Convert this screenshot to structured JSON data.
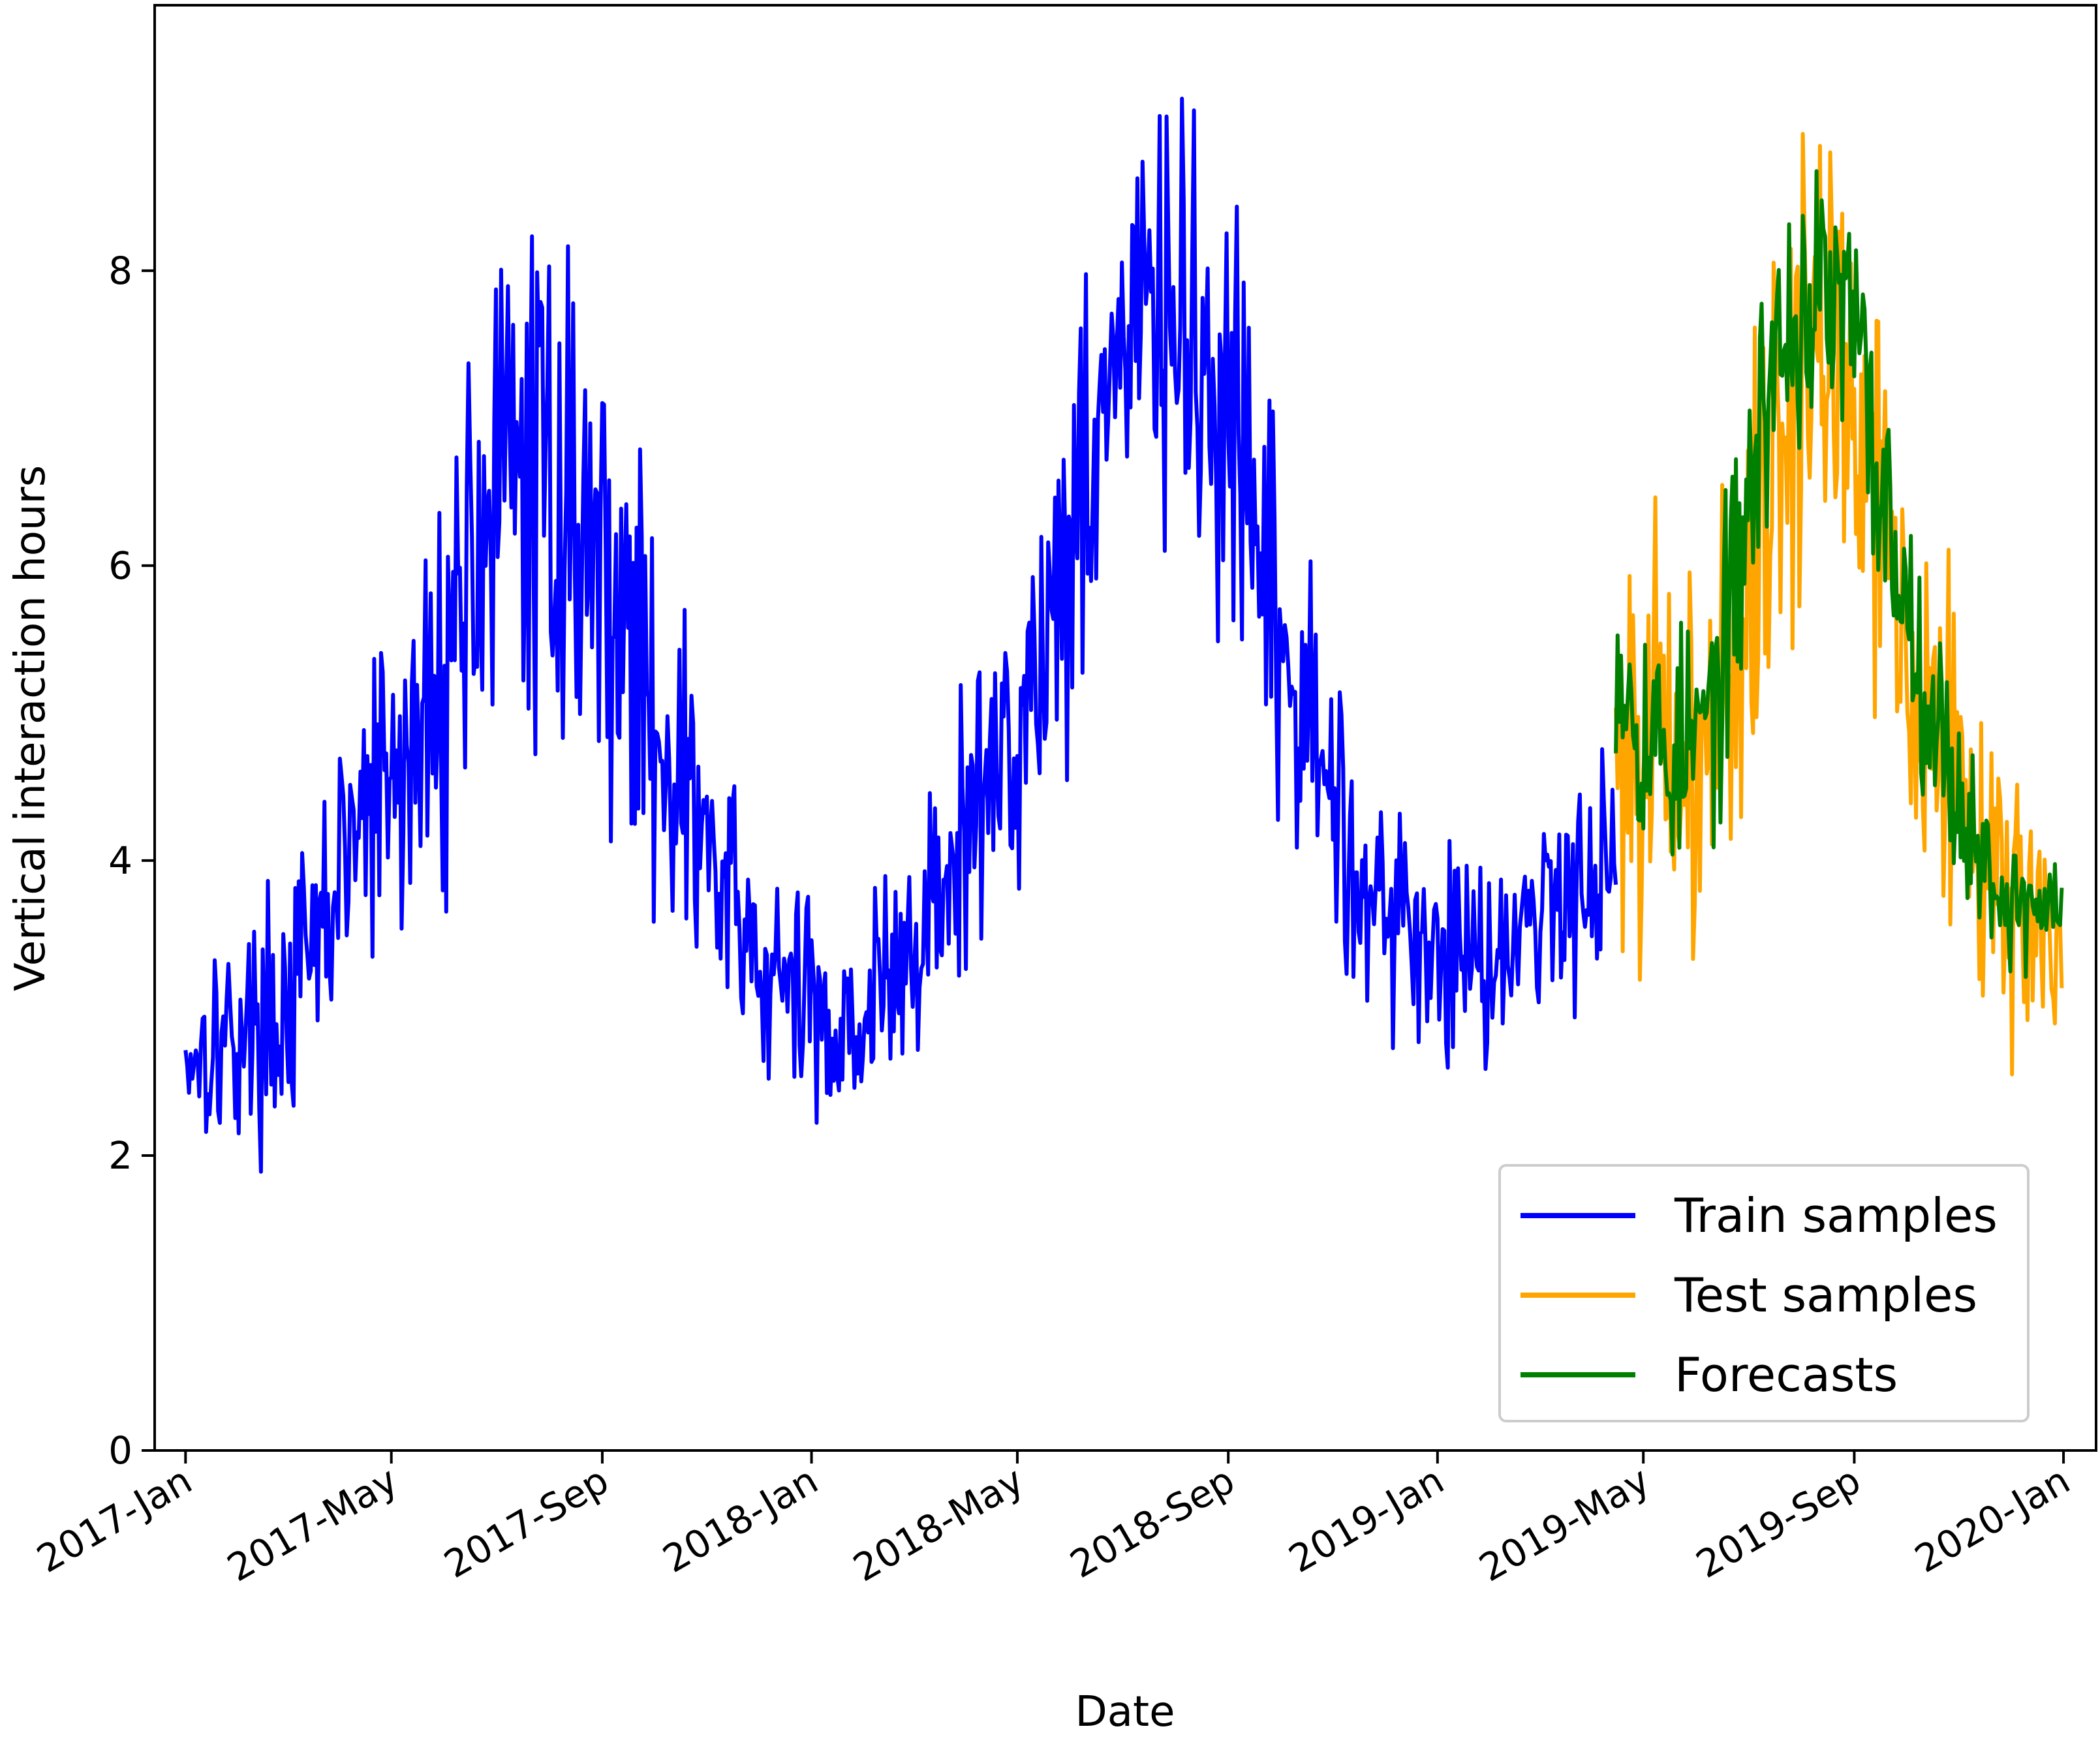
{
  "chart_data": {
    "type": "line",
    "title": "",
    "xlabel": "Date",
    "ylabel": "Vertical interaction hours",
    "ylim": [
      0,
      9.8
    ],
    "xlim": [
      "2016-12-14",
      "2020-01-20"
    ],
    "x_ticks": [
      {
        "date": "2017-01-01",
        "label": "2017-Jan"
      },
      {
        "date": "2017-05-01",
        "label": "2017-May"
      },
      {
        "date": "2017-09-01",
        "label": "2017-Sep"
      },
      {
        "date": "2018-01-01",
        "label": "2018-Jan"
      },
      {
        "date": "2018-05-01",
        "label": "2018-May"
      },
      {
        "date": "2018-09-01",
        "label": "2018-Sep"
      },
      {
        "date": "2019-01-01",
        "label": "2019-Jan"
      },
      {
        "date": "2019-05-01",
        "label": "2019-May"
      },
      {
        "date": "2019-09-01",
        "label": "2019-Sep"
      },
      {
        "date": "2020-01-01",
        "label": "2020-Jan"
      }
    ],
    "y_ticks": [
      0,
      2,
      4,
      6,
      8
    ],
    "grid": false,
    "legend_position": "bottom-right",
    "series": [
      {
        "name": "Train samples",
        "color": "#0000ff",
        "x": [
          "2017-01-01",
          "2017-01-15",
          "2017-02-01",
          "2017-02-15",
          "2017-03-01",
          "2017-03-15",
          "2017-04-01",
          "2017-04-15",
          "2017-05-01",
          "2017-05-15",
          "2017-06-01",
          "2017-06-15",
          "2017-07-01",
          "2017-07-15",
          "2017-08-01",
          "2017-08-15",
          "2017-09-01",
          "2017-09-15",
          "2017-10-01",
          "2017-10-15",
          "2017-11-01",
          "2017-11-15",
          "2017-12-01",
          "2017-12-15",
          "2018-01-01",
          "2018-01-15",
          "2018-02-01",
          "2018-02-15",
          "2018-03-01",
          "2018-03-15",
          "2018-04-01",
          "2018-04-15",
          "2018-05-01",
          "2018-05-15",
          "2018-06-01",
          "2018-06-15",
          "2018-07-01",
          "2018-07-15",
          "2018-08-01",
          "2018-08-15",
          "2018-09-01",
          "2018-09-15",
          "2018-10-01",
          "2018-10-15",
          "2018-11-01",
          "2018-11-15",
          "2018-12-01",
          "2018-12-15",
          "2019-01-01",
          "2019-01-15",
          "2019-02-01",
          "2019-02-15",
          "2019-03-01",
          "2019-03-15",
          "2019-04-01",
          "2019-04-15"
        ],
        "y": [
          2.7,
          2.8,
          2.8,
          2.9,
          3.0,
          3.3,
          3.9,
          4.3,
          4.5,
          4.7,
          5.3,
          6.1,
          6.5,
          6.6,
          6.6,
          6.4,
          6.0,
          5.6,
          5.0,
          4.6,
          4.1,
          3.6,
          3.3,
          3.1,
          3.0,
          2.9,
          3.0,
          3.1,
          3.4,
          3.7,
          4.1,
          4.6,
          5.0,
          5.4,
          6.2,
          7.0,
          7.5,
          7.7,
          7.6,
          7.3,
          6.8,
          6.2,
          5.4,
          4.9,
          4.5,
          4.0,
          3.7,
          3.5,
          3.4,
          3.4,
          3.4,
          3.5,
          3.6,
          3.8,
          4.0,
          4.2
        ],
        "amplitude": [
          0.55,
          0.6,
          0.6,
          0.65,
          0.7,
          0.75,
          0.85,
          0.95,
          1.0,
          1.05,
          1.2,
          1.3,
          1.4,
          1.45,
          1.45,
          1.4,
          1.35,
          1.25,
          1.1,
          1.0,
          0.9,
          0.8,
          0.75,
          0.7,
          0.7,
          0.7,
          0.7,
          0.7,
          0.75,
          0.8,
          0.9,
          0.95,
          1.0,
          1.05,
          1.15,
          1.25,
          1.35,
          1.35,
          1.3,
          1.3,
          1.25,
          1.2,
          1.05,
          0.95,
          0.85,
          0.75,
          0.7,
          0.65,
          0.6,
          0.6,
          0.6,
          0.6,
          0.6,
          0.65,
          0.7,
          0.75
        ]
      },
      {
        "name": "Test samples",
        "color": "#ffa500",
        "x": [
          "2019-04-15",
          "2019-05-01",
          "2019-05-15",
          "2019-06-01",
          "2019-06-15",
          "2019-07-01",
          "2019-07-15",
          "2019-08-01",
          "2019-08-15",
          "2019-09-01",
          "2019-09-15",
          "2019-10-01",
          "2019-10-15",
          "2019-11-01",
          "2019-11-15",
          "2019-12-01",
          "2019-12-15",
          "2019-12-31"
        ],
        "y": [
          4.8,
          5.0,
          4.5,
          4.6,
          5.0,
          5.9,
          6.7,
          7.3,
          7.5,
          7.3,
          6.5,
          5.6,
          5.0,
          4.4,
          4.0,
          3.7,
          3.6,
          3.6
        ],
        "amplitude": [
          1.1,
          1.25,
          1.25,
          1.2,
          1.25,
          1.35,
          1.45,
          1.5,
          1.5,
          1.45,
          1.35,
          1.25,
          1.15,
          1.05,
          0.9,
          0.8,
          0.75,
          0.75
        ]
      },
      {
        "name": "Forecasts",
        "color": "#008000",
        "x": [
          "2019-04-15",
          "2019-05-01",
          "2019-05-15",
          "2019-06-01",
          "2019-06-15",
          "2019-07-01",
          "2019-07-15",
          "2019-08-01",
          "2019-08-15",
          "2019-09-01",
          "2019-09-15",
          "2019-10-01",
          "2019-10-15",
          "2019-11-01",
          "2019-11-15",
          "2019-12-01",
          "2019-12-15",
          "2019-12-31"
        ],
        "y": [
          5.5,
          4.9,
          4.7,
          4.8,
          5.2,
          6.4,
          7.4,
          7.7,
          7.8,
          7.6,
          6.6,
          5.8,
          5.1,
          4.4,
          4.0,
          3.7,
          3.7,
          3.7
        ],
        "amplitude": [
          0.65,
          0.75,
          0.75,
          0.7,
          0.75,
          0.85,
          0.85,
          0.8,
          0.8,
          0.8,
          0.8,
          0.7,
          0.6,
          0.5,
          0.45,
          0.4,
          0.4,
          0.4
        ]
      }
    ]
  }
}
